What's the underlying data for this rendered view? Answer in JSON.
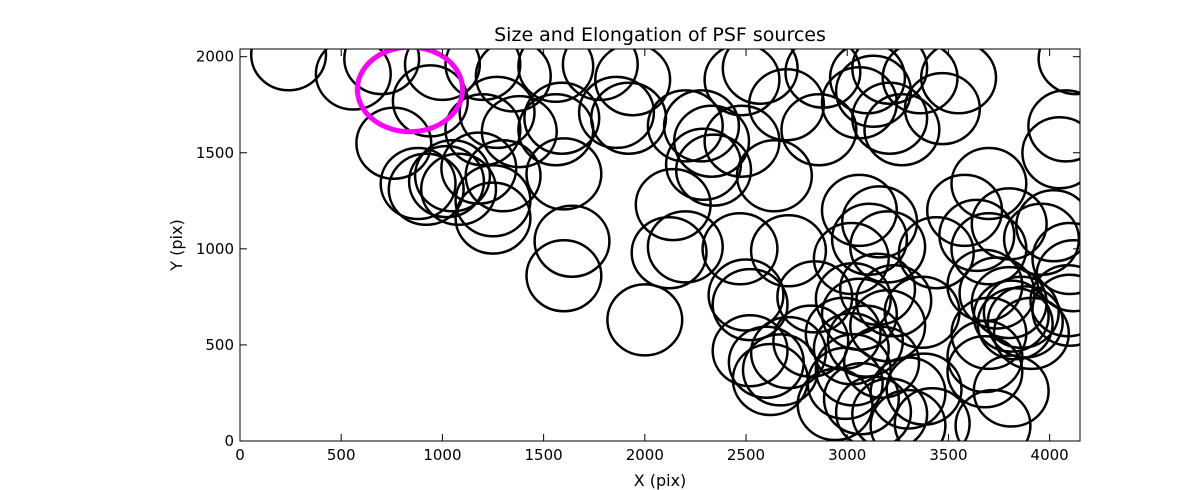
{
  "chart_data": {
    "type": "scatter",
    "title": "Size and Elongation of PSF sources",
    "xlabel": "X (pix)",
    "ylabel": "Y (pix)",
    "xlim": [
      0,
      4150
    ],
    "ylim": [
      0,
      2040
    ],
    "xticks": [
      0,
      500,
      1000,
      1500,
      2000,
      2500,
      3000,
      3500,
      4000
    ],
    "yticks": [
      0,
      500,
      1000,
      1500,
      2000
    ],
    "grid": false,
    "marker": "open-ellipse",
    "series": [
      {
        "color": "#000000",
        "width_data": 370,
        "height_data": 370,
        "points": [
          [
            240,
            2010
          ],
          [
            560,
            1910
          ],
          [
            700,
            1990
          ],
          [
            940,
            1770
          ],
          [
            1000,
            1960
          ],
          [
            1200,
            1960
          ],
          [
            1350,
            1900
          ],
          [
            1560,
            1950
          ],
          [
            1780,
            1960
          ],
          [
            1940,
            1880
          ],
          [
            2480,
            1880
          ],
          [
            2570,
            1940
          ],
          [
            2880,
            1920
          ],
          [
            3100,
            1890
          ],
          [
            3210,
            1940
          ],
          [
            3360,
            1890
          ],
          [
            3550,
            1890
          ],
          [
            4130,
            1990
          ],
          [
            760,
            1550
          ],
          [
            1050,
            1380
          ],
          [
            1180,
            1420
          ],
          [
            1200,
            1620
          ],
          [
            1270,
            1710
          ],
          [
            1380,
            1610
          ],
          [
            1560,
            1620
          ],
          [
            1590,
            1680
          ],
          [
            1860,
            1710
          ],
          [
            1920,
            1680
          ],
          [
            2200,
            1640
          ],
          [
            2280,
            1640
          ],
          [
            2330,
            1560
          ],
          [
            2480,
            1560
          ],
          [
            2700,
            1750
          ],
          [
            2860,
            1620
          ],
          [
            3060,
            1760
          ],
          [
            3130,
            1820
          ],
          [
            3210,
            1680
          ],
          [
            3270,
            1620
          ],
          [
            3470,
            1730
          ],
          [
            4080,
            1640
          ],
          [
            4050,
            1500
          ],
          [
            880,
            1340
          ],
          [
            920,
            1310
          ],
          [
            1020,
            1350
          ],
          [
            1080,
            1310
          ],
          [
            1250,
            1250
          ],
          [
            1300,
            1380
          ],
          [
            1600,
            1390
          ],
          [
            2140,
            1230
          ],
          [
            2290,
            1440
          ],
          [
            2340,
            1410
          ],
          [
            2640,
            1380
          ],
          [
            3060,
            1200
          ],
          [
            3160,
            1140
          ],
          [
            3580,
            1200
          ],
          [
            3700,
            1340
          ],
          [
            3800,
            1130
          ],
          [
            3960,
            1050
          ],
          [
            4020,
            1120
          ],
          [
            1250,
            1160
          ],
          [
            1640,
            1040
          ],
          [
            2120,
            980
          ],
          [
            2200,
            1010
          ],
          [
            2470,
            1000
          ],
          [
            2710,
            990
          ],
          [
            3020,
            950
          ],
          [
            3110,
            1050
          ],
          [
            3200,
            1010
          ],
          [
            3440,
            980
          ],
          [
            3640,
            1070
          ],
          [
            3700,
            1000
          ],
          [
            4100,
            950
          ],
          [
            4120,
            860
          ],
          [
            1600,
            860
          ],
          [
            2000,
            630
          ],
          [
            2500,
            760
          ],
          [
            2520,
            710
          ],
          [
            2840,
            750
          ],
          [
            3030,
            740
          ],
          [
            3150,
            790
          ],
          [
            3230,
            730
          ],
          [
            3370,
            670
          ],
          [
            3680,
            810
          ],
          [
            3740,
            770
          ],
          [
            3800,
            720
          ],
          [
            3810,
            650
          ],
          [
            3860,
            670
          ],
          [
            3830,
            610
          ],
          [
            4090,
            730
          ],
          [
            4100,
            680
          ],
          [
            2520,
            470
          ],
          [
            2600,
            410
          ],
          [
            2710,
            460
          ],
          [
            2820,
            520
          ],
          [
            2980,
            560
          ],
          [
            3020,
            480
          ],
          [
            3090,
            520
          ],
          [
            3170,
            410
          ],
          [
            3200,
            600
          ],
          [
            3060,
            660
          ],
          [
            3680,
            440
          ],
          [
            3700,
            560
          ],
          [
            3880,
            620
          ],
          [
            3910,
            560
          ],
          [
            2620,
            320
          ],
          [
            2670,
            370
          ],
          [
            2940,
            190
          ],
          [
            2990,
            300
          ],
          [
            3030,
            370
          ],
          [
            3070,
            220
          ],
          [
            3130,
            150
          ],
          [
            3210,
            140
          ],
          [
            3300,
            250
          ],
          [
            3300,
            80
          ],
          [
            3380,
            270
          ],
          [
            3420,
            90
          ],
          [
            3680,
            360
          ],
          [
            3720,
            80
          ],
          [
            3810,
            260
          ]
        ]
      },
      {
        "color": "#ff00ff",
        "width_data": 520,
        "height_data": 440,
        "points": [
          [
            840,
            1830
          ]
        ]
      }
    ]
  }
}
